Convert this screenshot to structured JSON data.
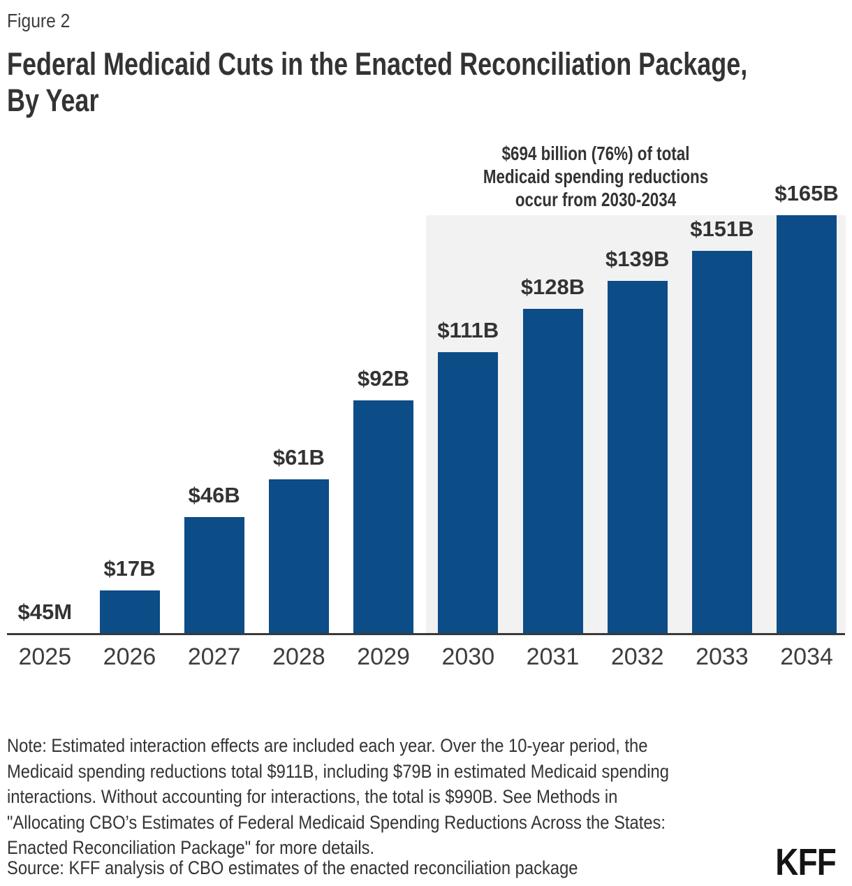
{
  "figure_label": "Figure 2",
  "title": "Federal Medicaid Cuts in the Enacted Reconciliation Package, By Year",
  "title_lines": [
    "Federal Medicaid Cuts in the Enacted Reconciliation Package,",
    "By Year"
  ],
  "annotation": {
    "lines": [
      "$694 billion (76%) of total",
      "Medicaid spending reductions",
      "occur from 2030-2034"
    ]
  },
  "chart_data": {
    "type": "bar",
    "title": "Federal Medicaid Cuts in the Enacted Reconciliation Package, By Year",
    "unit": "billions of dollars",
    "categories": [
      "2025",
      "2026",
      "2027",
      "2028",
      "2029",
      "2030",
      "2031",
      "2032",
      "2033",
      "2034"
    ],
    "values": [
      0.045,
      17,
      46,
      61,
      92,
      111,
      128,
      139,
      151,
      165
    ],
    "value_labels": [
      "$45M",
      "$17B",
      "$46B",
      "$61B",
      "$92B",
      "$111B",
      "$128B",
      "$139B",
      "$151B",
      "$165B"
    ],
    "ylim": [
      0,
      165
    ],
    "grid": false,
    "legend": "none",
    "bar_color": "#0C4C87",
    "highlight_region": {
      "categories": [
        "2030",
        "2031",
        "2032",
        "2033",
        "2034"
      ],
      "color": "#F2F2F2",
      "label": "$694 billion (76%) of total Medicaid spending reductions occur from 2030-2034"
    }
  },
  "note_lines": [
    "Note: Estimated interaction effects are included each year. Over the 10-year period, the",
    "Medicaid spending reductions total $911B, including $79B in estimated Medicaid spending",
    "interactions. Without accounting for interactions, the total is $990B. See Methods in",
    "\"Allocating CBO’s Estimates of Federal Medicaid Spending Reductions Across the States:",
    "Enacted Reconciliation Package\" for more details."
  ],
  "source": "Source: KFF analysis of CBO estimates of the enacted reconciliation package",
  "logo_text": "KFF",
  "colors": {
    "bar": "#0C4C87",
    "highlight_region": "#F2F2F2",
    "axis_line": "#3A3A3A",
    "text": "#333333",
    "background": "#FFFFFF"
  }
}
